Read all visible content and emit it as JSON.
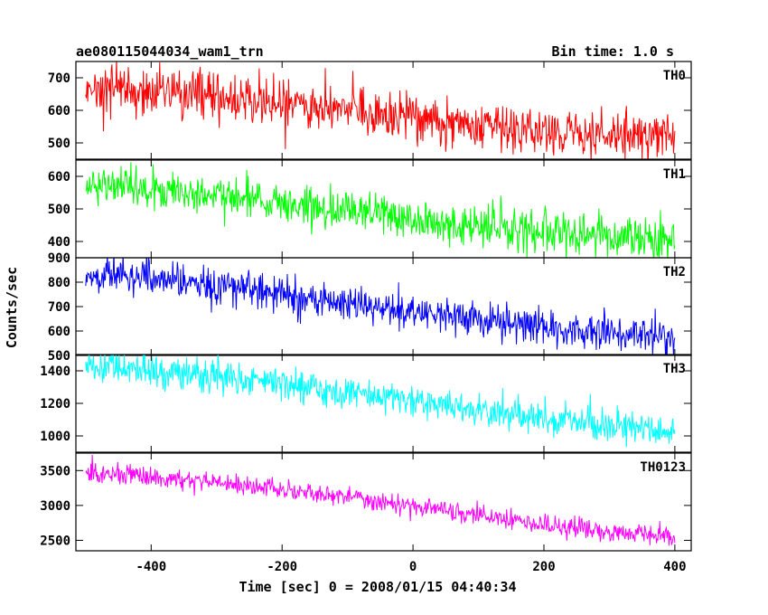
{
  "chart_data": {
    "type": "line",
    "title_left": "ae080115044034_wam1_trn",
    "title_right": "Bin time: 1.0 s",
    "xlabel": "Time [sec] 0 = 2008/01/15 04:40:34",
    "ylabel": "Counts/sec",
    "xlim": [
      -515,
      425
    ],
    "x_ticks": [
      -400,
      -200,
      0,
      200,
      400
    ],
    "x_range": [
      -500,
      400
    ],
    "bin_time": 1.0,
    "grid": false,
    "panels": [
      {
        "name": "TH0",
        "color": "#ff0000",
        "ylim": [
          450,
          750
        ],
        "y_ticks": [
          500,
          600,
          700
        ],
        "trend": [
          [
            -500,
            670
          ],
          [
            -300,
            640
          ],
          [
            -100,
            600
          ],
          [
            100,
            550
          ],
          [
            300,
            525
          ],
          [
            400,
            520
          ]
        ],
        "noise_sd": 38
      },
      {
        "name": "TH1",
        "color": "#00ff00",
        "ylim": [
          350,
          650
        ],
        "y_ticks": [
          400,
          500,
          600
        ],
        "trend": [
          [
            -500,
            580
          ],
          [
            -300,
            540
          ],
          [
            -100,
            490
          ],
          [
            100,
            445
          ],
          [
            300,
            415
          ],
          [
            400,
            410
          ]
        ],
        "noise_sd": 32
      },
      {
        "name": "TH2",
        "color": "#0000ff",
        "ylim": [
          500,
          900
        ],
        "y_ticks": [
          500,
          600,
          700,
          800,
          900
        ],
        "trend": [
          [
            -500,
            830
          ],
          [
            -300,
            790
          ],
          [
            -100,
            710
          ],
          [
            100,
            650
          ],
          [
            300,
            590
          ],
          [
            400,
            575
          ]
        ],
        "noise_sd": 38
      },
      {
        "name": "TH3",
        "color": "#00ffff",
        "ylim": [
          900,
          1500
        ],
        "y_ticks": [
          1000,
          1200,
          1400
        ],
        "trend": [
          [
            -500,
            1420
          ],
          [
            -300,
            1370
          ],
          [
            -100,
            1270
          ],
          [
            100,
            1150
          ],
          [
            300,
            1060
          ],
          [
            400,
            1040
          ]
        ],
        "noise_sd": 50
      },
      {
        "name": "TH0123",
        "color": "#ff00ff",
        "ylim": [
          2350,
          3750
        ],
        "y_ticks": [
          2500,
          3000,
          3500
        ],
        "trend": [
          [
            -500,
            3480
          ],
          [
            -300,
            3330
          ],
          [
            -100,
            3120
          ],
          [
            100,
            2850
          ],
          [
            300,
            2610
          ],
          [
            400,
            2560
          ]
        ],
        "noise_sd": 70
      }
    ]
  }
}
